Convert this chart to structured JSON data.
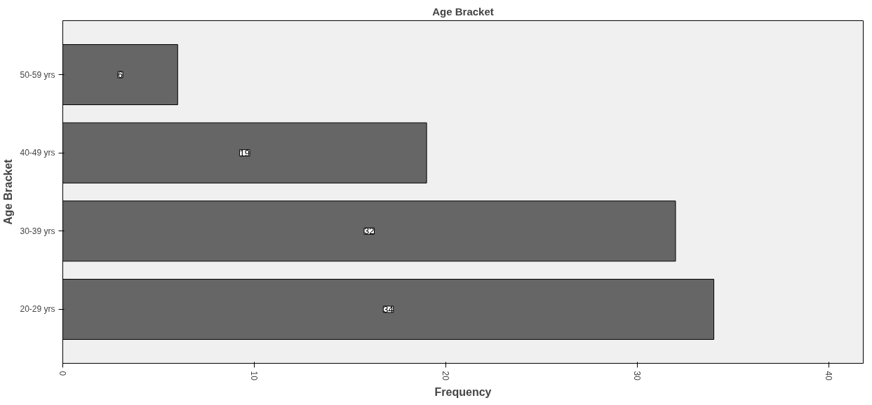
{
  "chart_data": {
    "type": "bar",
    "orientation": "horizontal",
    "title": "Age Bracket",
    "xlabel": "Frequency",
    "ylabel": "Age Bracket",
    "categories": [
      "50-59 yrs",
      "40-49 yrs",
      "30-39 yrs",
      "20-29 yrs"
    ],
    "values": [
      6,
      19,
      32,
      34
    ],
    "color": "#666666",
    "xlim": [
      0,
      41.8
    ],
    "xticks": [
      0,
      10,
      20,
      30,
      40
    ],
    "grid": false,
    "data_labels": true
  }
}
